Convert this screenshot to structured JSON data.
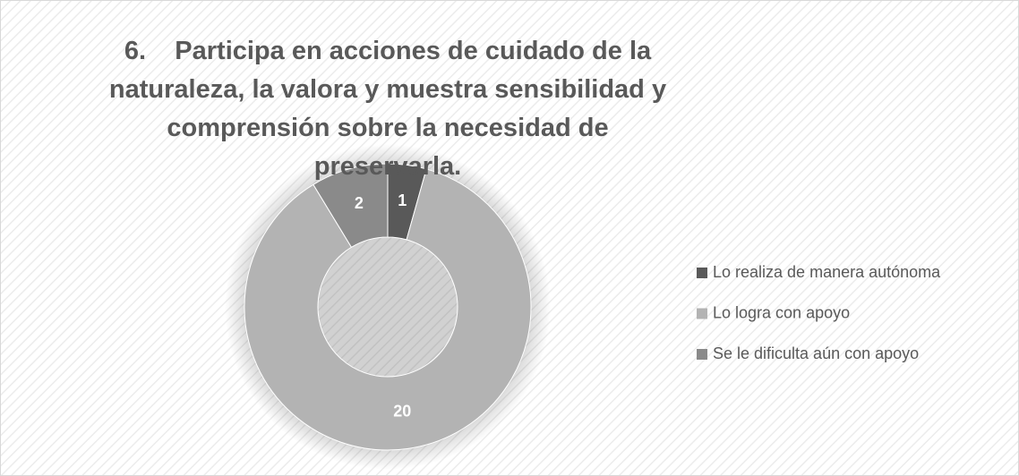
{
  "chart_data": {
    "type": "donut",
    "title": "6.    Participa en acciones de cuidado de la naturaleza, la valora y muestra sensibilidad y comprensión sobre la necesidad de preservarla.",
    "categories": [
      "Lo realiza de manera autónoma",
      "Lo logra con apoyo",
      "Se le dificulta aún con apoyo"
    ],
    "values": [
      1,
      20,
      2
    ],
    "colors": [
      "#595959",
      "#b3b3b3",
      "#8a8a8a"
    ],
    "legend": "right"
  }
}
